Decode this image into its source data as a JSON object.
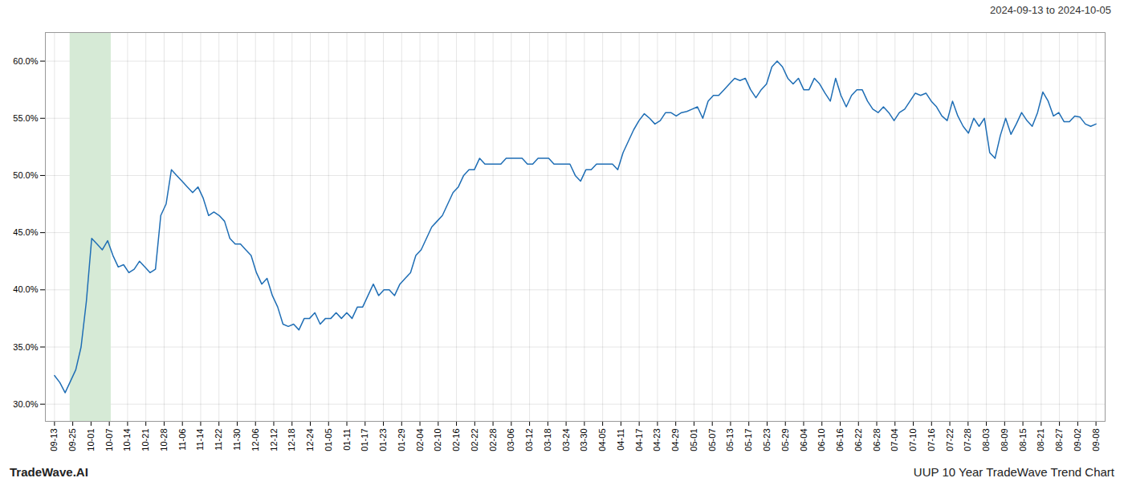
{
  "chart_data": {
    "type": "line",
    "title": "2024-09-13 to 2024-10-05",
    "annotations": [
      "TradeWave.AI",
      "UUP 10 Year TradeWave Trend Chart"
    ],
    "color": "#1f6eb5",
    "shade": {
      "x": [
        0.85,
        3.1
      ],
      "color": "#d6ead6"
    },
    "grid": true,
    "xlim": [
      -0.5,
      57.5
    ],
    "xticks": [
      {
        "value": 0,
        "label": "09-13"
      },
      {
        "value": 1,
        "label": "09-25"
      },
      {
        "value": 2,
        "label": "10-01"
      },
      {
        "value": 3,
        "label": "10-07"
      },
      {
        "value": 4,
        "label": "10-14"
      },
      {
        "value": 5,
        "label": "10-21"
      },
      {
        "value": 6,
        "label": "10-28"
      },
      {
        "value": 7,
        "label": "11-06"
      },
      {
        "value": 8,
        "label": "11-14"
      },
      {
        "value": 9,
        "label": "11-22"
      },
      {
        "value": 10,
        "label": "11-30"
      },
      {
        "value": 11,
        "label": "12-06"
      },
      {
        "value": 12,
        "label": "12-12"
      },
      {
        "value": 13,
        "label": "12-18"
      },
      {
        "value": 14,
        "label": "12-24"
      },
      {
        "value": 15,
        "label": "01-05"
      },
      {
        "value": 16,
        "label": "01-11"
      },
      {
        "value": 17,
        "label": "01-17"
      },
      {
        "value": 18,
        "label": "01-23"
      },
      {
        "value": 19,
        "label": "01-29"
      },
      {
        "value": 20,
        "label": "02-04"
      },
      {
        "value": 21,
        "label": "02-10"
      },
      {
        "value": 22,
        "label": "02-16"
      },
      {
        "value": 23,
        "label": "02-22"
      },
      {
        "value": 24,
        "label": "02-28"
      },
      {
        "value": 25,
        "label": "03-06"
      },
      {
        "value": 26,
        "label": "03-12"
      },
      {
        "value": 27,
        "label": "03-18"
      },
      {
        "value": 28,
        "label": "03-24"
      },
      {
        "value": 29,
        "label": "03-30"
      },
      {
        "value": 30,
        "label": "04-05"
      },
      {
        "value": 31,
        "label": "04-11"
      },
      {
        "value": 32,
        "label": "04-17"
      },
      {
        "value": 33,
        "label": "04-23"
      },
      {
        "value": 34,
        "label": "04-29"
      },
      {
        "value": 35,
        "label": "05-01"
      },
      {
        "value": 36,
        "label": "05-07"
      },
      {
        "value": 37,
        "label": "05-13"
      },
      {
        "value": 38,
        "label": "05-17"
      },
      {
        "value": 39,
        "label": "05-23"
      },
      {
        "value": 40,
        "label": "05-29"
      },
      {
        "value": 41,
        "label": "06-04"
      },
      {
        "value": 42,
        "label": "06-10"
      },
      {
        "value": 43,
        "label": "06-16"
      },
      {
        "value": 44,
        "label": "06-22"
      },
      {
        "value": 45,
        "label": "06-28"
      },
      {
        "value": 46,
        "label": "07-04"
      },
      {
        "value": 47,
        "label": "07-10"
      },
      {
        "value": 48,
        "label": "07-16"
      },
      {
        "value": 49,
        "label": "07-22"
      },
      {
        "value": 50,
        "label": "07-28"
      },
      {
        "value": 51,
        "label": "08-03"
      },
      {
        "value": 52,
        "label": "08-09"
      },
      {
        "value": 53,
        "label": "08-15"
      },
      {
        "value": 54,
        "label": "08-21"
      },
      {
        "value": 55,
        "label": "08-27"
      },
      {
        "value": 56,
        "label": "09-02"
      },
      {
        "value": 57,
        "label": "09-08"
      }
    ],
    "ylim": [
      0.285,
      0.625
    ],
    "yticks": [
      {
        "value": 0.3,
        "label": "30.0%"
      },
      {
        "value": 0.35,
        "label": "35.0%"
      },
      {
        "value": 0.4,
        "label": "40.0%"
      },
      {
        "value": 0.45,
        "label": "45.0%"
      },
      {
        "value": 0.5,
        "label": "50.0%"
      },
      {
        "value": 0.55,
        "label": "55.0%"
      },
      {
        "value": 0.6,
        "label": "60.0%"
      }
    ],
    "values": [
      0.325,
      0.319,
      0.31,
      0.32,
      0.33,
      0.35,
      0.39,
      0.445,
      0.44,
      0.435,
      0.443,
      0.43,
      0.42,
      0.422,
      0.415,
      0.418,
      0.425,
      0.42,
      0.415,
      0.418,
      0.465,
      0.475,
      0.505,
      0.5,
      0.495,
      0.49,
      0.485,
      0.49,
      0.48,
      0.465,
      0.468,
      0.465,
      0.46,
      0.445,
      0.44,
      0.44,
      0.435,
      0.43,
      0.415,
      0.405,
      0.41,
      0.395,
      0.385,
      0.37,
      0.368,
      0.37,
      0.365,
      0.375,
      0.375,
      0.38,
      0.37,
      0.375,
      0.375,
      0.38,
      0.375,
      0.38,
      0.375,
      0.385,
      0.385,
      0.395,
      0.405,
      0.395,
      0.4,
      0.4,
      0.395,
      0.405,
      0.41,
      0.415,
      0.43,
      0.435,
      0.445,
      0.455,
      0.46,
      0.465,
      0.475,
      0.485,
      0.49,
      0.5,
      0.505,
      0.505,
      0.515,
      0.51,
      0.51,
      0.51,
      0.51,
      0.515,
      0.515,
      0.515,
      0.515,
      0.51,
      0.51,
      0.515,
      0.515,
      0.515,
      0.51,
      0.51,
      0.51,
      0.51,
      0.5,
      0.495,
      0.505,
      0.505,
      0.51,
      0.51,
      0.51,
      0.51,
      0.505,
      0.52,
      0.53,
      0.54,
      0.548,
      0.554,
      0.55,
      0.545,
      0.548,
      0.555,
      0.555,
      0.552,
      0.555,
      0.556,
      0.558,
      0.56,
      0.55,
      0.565,
      0.57,
      0.57,
      0.575,
      0.58,
      0.585,
      0.583,
      0.585,
      0.575,
      0.568,
      0.575,
      0.58,
      0.595,
      0.6,
      0.595,
      0.585,
      0.58,
      0.585,
      0.575,
      0.575,
      0.585,
      0.58,
      0.572,
      0.565,
      0.585,
      0.57,
      0.56,
      0.57,
      0.575,
      0.575,
      0.565,
      0.558,
      0.555,
      0.56,
      0.555,
      0.548,
      0.555,
      0.558,
      0.565,
      0.572,
      0.57,
      0.572,
      0.565,
      0.56,
      0.552,
      0.548,
      0.565,
      0.552,
      0.543,
      0.537,
      0.55,
      0.543,
      0.55,
      0.52,
      0.515,
      0.535,
      0.55,
      0.536,
      0.545,
      0.555,
      0.548,
      0.543,
      0.555,
      0.573,
      0.565,
      0.552,
      0.555,
      0.547,
      0.547,
      0.552,
      0.551,
      0.545,
      0.543,
      0.545
    ]
  }
}
